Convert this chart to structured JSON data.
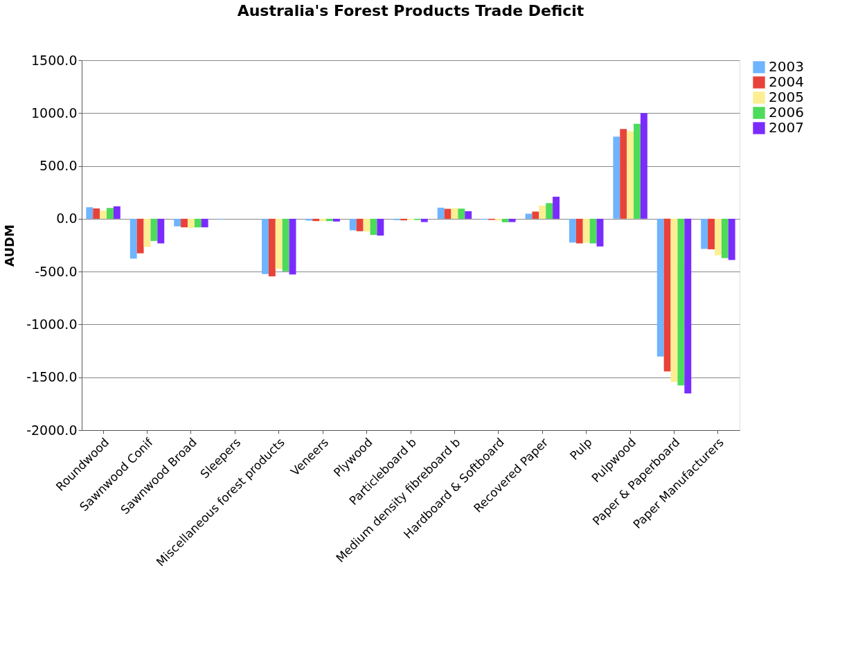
{
  "chart_data": {
    "type": "bar",
    "title": "Australia's Forest Products Trade Deficit",
    "ylabel": "AUDM",
    "categories": [
      "Roundwood",
      "Sawnwood Conif",
      "Sawnwood Broad",
      "Sleepers",
      "Miscellaneous forest products",
      "Veneers",
      "Plywood",
      "Particleboard b",
      "Medium density fibreboard b",
      "Hardboard & Softboard",
      "Recovered Paper",
      "Pulp",
      "Pulpwood",
      "Paper & Paperboard",
      "Paper Manufacturers"
    ],
    "series": [
      {
        "name": "2003",
        "color": "#6fb4ff",
        "values": [
          109,
          -377,
          -72,
          -5,
          -523,
          -17,
          -109,
          -13,
          105,
          -9,
          48,
          -225,
          777,
          -1303,
          -285
        ]
      },
      {
        "name": "2004",
        "color": "#e8423a",
        "values": [
          98,
          -327,
          -81,
          null,
          -545,
          -22,
          -118,
          -15,
          94,
          -11,
          68,
          -233,
          850,
          -1445,
          -289
        ]
      },
      {
        "name": "2005",
        "color": "#fcee92",
        "values": [
          76,
          -266,
          -87,
          null,
          -473,
          -22,
          -120,
          -11,
          100,
          -17,
          124,
          -227,
          828,
          -1544,
          -346
        ]
      },
      {
        "name": "2006",
        "color": "#4cdb5a",
        "values": [
          102,
          -210,
          -81,
          null,
          -497,
          -22,
          -153,
          -11,
          96,
          -33,
          148,
          -233,
          898,
          -1577,
          -372
        ]
      },
      {
        "name": "2007",
        "color": "#7a2cff",
        "values": [
          118,
          -233,
          -81,
          null,
          -527,
          -26,
          -159,
          -31,
          72,
          -31,
          209,
          -262,
          1001,
          -1653,
          -390
        ]
      }
    ],
    "ylim": [
      -2000,
      1500
    ],
    "yticks": [
      {
        "value": -2000,
        "label": "-2000.0"
      },
      {
        "value": -1500,
        "label": "-1500.0"
      },
      {
        "value": -1000,
        "label": "-1000.0"
      },
      {
        "value": -500,
        "label": "-500.0"
      },
      {
        "value": 0,
        "label": "0.0"
      },
      {
        "value": 500,
        "label": "500.0"
      },
      {
        "value": 1000,
        "label": "1000.0"
      },
      {
        "value": 1500,
        "label": "1500.0"
      }
    ],
    "grid": "y",
    "legend": "right"
  }
}
